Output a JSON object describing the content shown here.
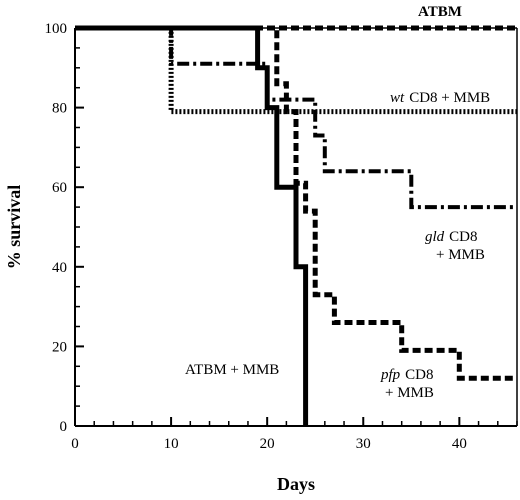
{
  "chart_data": {
    "type": "line",
    "subtype": "kaplan-meier step",
    "title": "",
    "xlabel": "Days",
    "ylabel": "% survival",
    "xlim": [
      0,
      46
    ],
    "ylim": [
      0,
      100
    ],
    "xticks": [
      0,
      10,
      20,
      30,
      40
    ],
    "yticks": [
      0,
      20,
      40,
      60,
      80,
      100
    ],
    "grid": false,
    "series": [
      {
        "name": "ATBM",
        "style": "thick-dashed",
        "color": "#000000",
        "points": [
          [
            0,
            100
          ],
          [
            46,
            100
          ]
        ]
      },
      {
        "name": "wt CD8 + MMB",
        "style": "dotted-hatched",
        "color": "#000000",
        "points": [
          [
            0,
            100
          ],
          [
            10,
            100
          ],
          [
            10,
            79
          ],
          [
            46,
            79
          ]
        ]
      },
      {
        "name": "gld CD8 + MMB",
        "style": "dash-dot",
        "color": "#000000",
        "points": [
          [
            0,
            100
          ],
          [
            10,
            100
          ],
          [
            10,
            91
          ],
          [
            20,
            91
          ],
          [
            20,
            82
          ],
          [
            25,
            82
          ],
          [
            25,
            73
          ],
          [
            26,
            73
          ],
          [
            26,
            64
          ],
          [
            35,
            64
          ],
          [
            35,
            55
          ],
          [
            46,
            55
          ]
        ]
      },
      {
        "name": "pfp CD8 + MMB",
        "style": "thick-dashed",
        "color": "#000000",
        "points": [
          [
            0,
            100
          ],
          [
            21,
            100
          ],
          [
            21,
            86
          ],
          [
            22,
            86
          ],
          [
            22,
            79
          ],
          [
            23,
            79
          ],
          [
            23,
            61
          ],
          [
            24,
            61
          ],
          [
            24,
            54
          ],
          [
            25,
            54
          ],
          [
            25,
            33
          ],
          [
            27,
            33
          ],
          [
            27,
            26
          ],
          [
            34,
            26
          ],
          [
            34,
            19
          ],
          [
            40,
            19
          ],
          [
            40,
            12
          ],
          [
            46,
            12
          ]
        ]
      },
      {
        "name": "ATBM + MMB",
        "style": "solid",
        "color": "#000000",
        "points": [
          [
            0,
            100
          ],
          [
            19,
            100
          ],
          [
            19,
            90
          ],
          [
            20,
            90
          ],
          [
            20,
            80
          ],
          [
            21,
            80
          ],
          [
            21,
            60
          ],
          [
            23,
            60
          ],
          [
            23,
            40
          ],
          [
            24,
            40
          ],
          [
            24,
            0
          ]
        ]
      }
    ],
    "annotations": {
      "atbm": "ATBM",
      "wt_italic": "wt",
      "wt_rest": "CD8 + MMB",
      "gld_italic": "gld",
      "gld_rest": "CD8",
      "gld_line2": "+ MMB",
      "pfp_italic": "pfp",
      "pfp_rest": "CD8",
      "pfp_line2": "+ MMB",
      "atbm_mmb": "ATBM + MMB"
    }
  }
}
